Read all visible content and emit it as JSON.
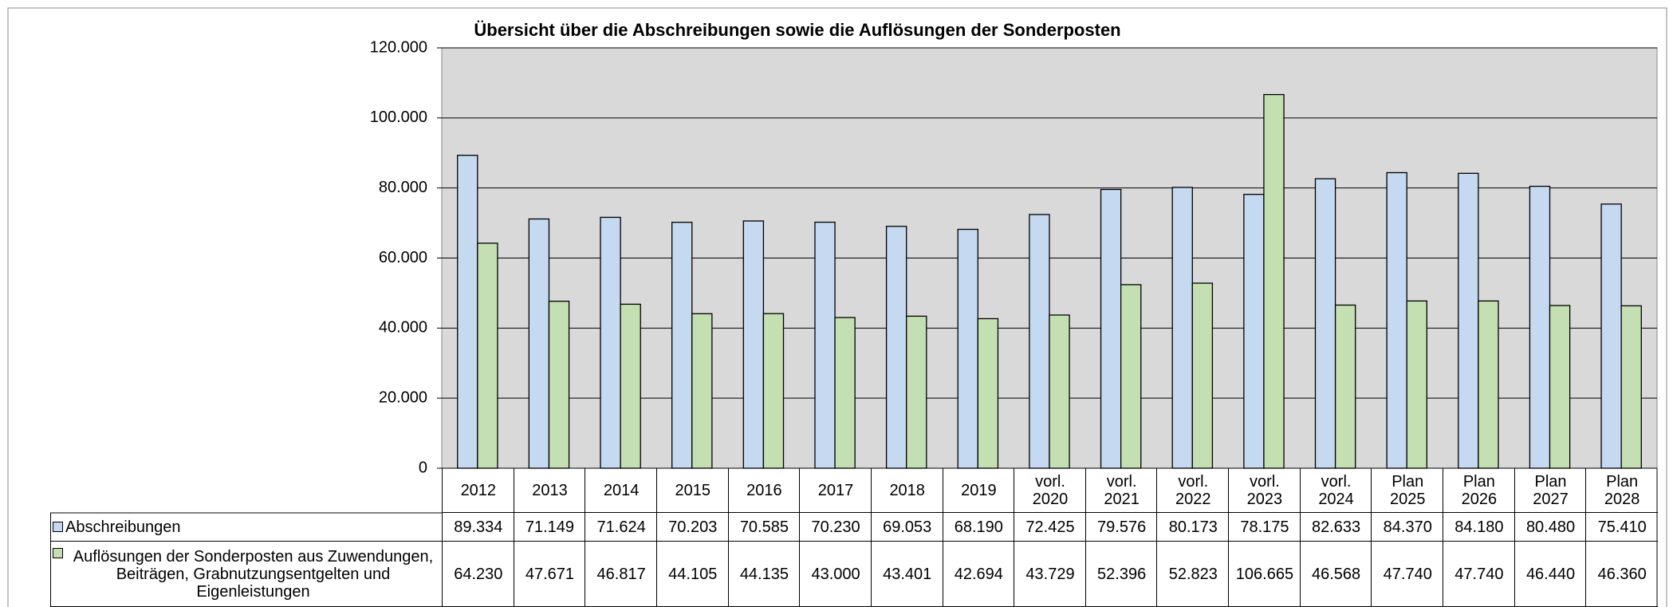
{
  "chart_data": {
    "type": "bar",
    "title": "Übersicht über die Abschreibungen sowie die Auflösungen der Sonderposten",
    "categories": [
      "2012",
      "2013",
      "2014",
      "2015",
      "2016",
      "2017",
      "2018",
      "2019",
      "vorl. 2020",
      "vorl. 2021",
      "vorl. 2022",
      "vorl. 2023",
      "vorl. 2024",
      "Plan 2025",
      "Plan 2026",
      "Plan 2027",
      "Plan 2028"
    ],
    "series": [
      {
        "name": "Abschreibungen",
        "color": "#c5d9f1",
        "values": [
          89334,
          71149,
          71624,
          70203,
          70585,
          70230,
          69053,
          68190,
          72425,
          79576,
          80173,
          78175,
          82633,
          84370,
          84180,
          80480,
          75410
        ],
        "value_labels": [
          "89.334",
          "71.149",
          "71.624",
          "70.203",
          "70.585",
          "70.230",
          "69.053",
          "68.190",
          "72.425",
          "79.576",
          "80.173",
          "78.175",
          "82.633",
          "84.370",
          "84.180",
          "80.480",
          "75.410"
        ]
      },
      {
        "name": "Auflösungen der Sonderposten aus Zuwendungen, Beiträgen, Grabnutzungsentgelten und Eigenleistungen",
        "color": "#c4e0b2",
        "values": [
          64230,
          47671,
          46817,
          44105,
          44135,
          43000,
          43401,
          42694,
          43729,
          52396,
          52823,
          106665,
          46568,
          47740,
          47740,
          46440,
          46360
        ],
        "value_labels": [
          "64.230",
          "47.671",
          "46.817",
          "44.105",
          "44.135",
          "43.000",
          "43.401",
          "42.694",
          "43.729",
          "52.396",
          "52.823",
          "106.665",
          "46.568",
          "47.740",
          "47.740",
          "46.440",
          "46.360"
        ]
      }
    ],
    "ylim": [
      0,
      120000
    ],
    "yticks": [
      {
        "value": 0,
        "label": "0"
      },
      {
        "value": 20000,
        "label": "20.000"
      },
      {
        "value": 40000,
        "label": "40.000"
      },
      {
        "value": 60000,
        "label": "60.000"
      },
      {
        "value": 80000,
        "label": "80.000"
      },
      {
        "value": 100000,
        "label": "100.000"
      },
      {
        "value": 120000,
        "label": "120.000"
      }
    ],
    "grid": true,
    "plot_background": "#d9d9d9"
  }
}
